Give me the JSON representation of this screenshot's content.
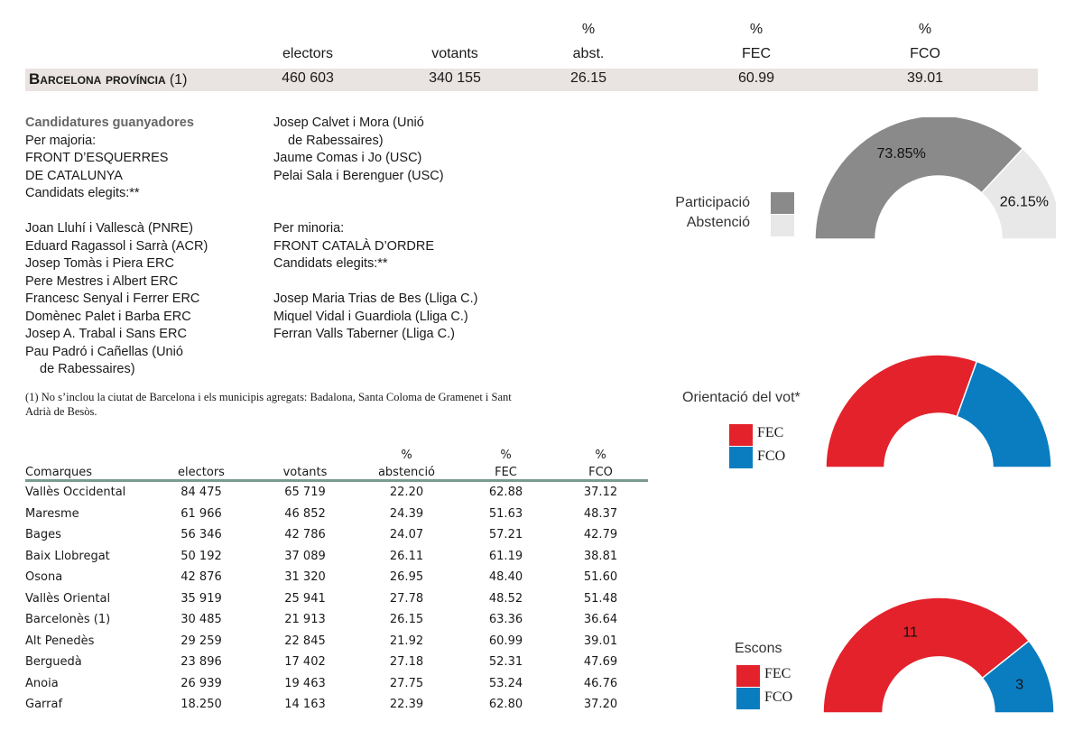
{
  "header": {
    "pct": "%",
    "electors": "electors",
    "votants": "votants",
    "abst": "abst.",
    "fec": "FEC",
    "fco": "FCO"
  },
  "summary": {
    "title": "Barcelona província",
    "ref": "(1)",
    "electors": "460 603",
    "votants": "340 155",
    "abst": "26.15",
    "fec": "60.99",
    "fco": "39.01"
  },
  "candidates": {
    "heading": "Candidatures guanyadores",
    "majority_label": "Per majoria:",
    "majority_party_1": "FRONT D’ESQUERRES",
    "majority_party_2": "DE CATALUNYA",
    "elected_label": "Candidats elegits:**",
    "majority_list": [
      "Joan Lluhí i Vallescà (PNRE)",
      "Eduard Ragassol i Sarrà (ACR)",
      "Josep Tomàs i Piera ERC",
      "Pere Mestres i Albert ERC",
      "Francesc Senyal i Ferrer ERC",
      "Domènec Palet i Barba ERC",
      "Josep A. Trabal i Sans ERC",
      "Pau Padró i Cañellas (Unió",
      "de Rabessaires)"
    ],
    "majority_list_cont": [
      "Josep Calvet i Mora (Unió",
      "de Rabessaires)",
      "Jaume Comas i Jo (USC)",
      "Pelai Sala i Berenguer (USC)"
    ],
    "minority_label": "Per minoria:",
    "minority_party": "FRONT CATALÀ D’ORDRE",
    "minority_elected_label": "Candidats elegits:**",
    "minority_list": [
      "Josep Maria Trias de Bes (Lliga C.)",
      "Miquel Vidal i Guardiola (Lliga C.)",
      "Ferran Valls Taberner (Lliga C.)"
    ]
  },
  "footnote": "(1) No s’inclou la ciutat de Barcelona i els municipis agregats: Badalona, Santa Coloma de Gramenet i Sant Adrià de Besòs.",
  "comarques_table": {
    "pct": "%",
    "columns": [
      "Comarques",
      "electors",
      "votants",
      "abstenció",
      "FEC",
      "FCO"
    ],
    "rows": [
      [
        "Vallès Occidental",
        "84 475",
        "65 719",
        "22.20",
        "62.88",
        "37.12"
      ],
      [
        "Maresme",
        "61 966",
        "46 852",
        "24.39",
        "51.63",
        "48.37"
      ],
      [
        "Bages",
        "56 346",
        "42 786",
        "24.07",
        "57.21",
        "42.79"
      ],
      [
        "Baix Llobregat",
        "50 192",
        "37 089",
        "26.11",
        "61.19",
        "38.81"
      ],
      [
        "Osona",
        "42 876",
        "31 320",
        "26.95",
        "48.40",
        "51.60"
      ],
      [
        "Vallès Oriental",
        "35 919",
        "25 941",
        "27.78",
        "48.52",
        "51.48"
      ],
      [
        "Barcelonès (1)",
        "30 485",
        "21 913",
        "26.15",
        "63.36",
        "36.64"
      ],
      [
        "Alt Penedès",
        "29 259",
        "22 845",
        "21.92",
        "60.99",
        "39.01"
      ],
      [
        "Berguedà",
        "23 896",
        "17 402",
        "27.18",
        "52.31",
        "47.69"
      ],
      [
        "Anoia",
        "26 939",
        "19 463",
        "27.75",
        "53.24",
        "46.76"
      ],
      [
        "Garraf",
        "18.250",
        "14 163",
        "22.39",
        "62.80",
        "37.20"
      ]
    ]
  },
  "colors": {
    "band": "#e9e3e1",
    "participacio": "#8a8a8a",
    "abstencio": "#e8e8e8",
    "fec": "#e3222b",
    "fco": "#0a7dc0",
    "rule": "#7a9a90"
  },
  "chart_data": [
    {
      "type": "pie",
      "shape": "half-donut",
      "title": "",
      "legend": [
        "Participació",
        "Abstenció"
      ],
      "legend_placement": "left",
      "slices": [
        {
          "name": "Participació",
          "value": 73.85,
          "label": "73.85%",
          "color": "#8a8a8a"
        },
        {
          "name": "Abstenció",
          "value": 26.15,
          "label": "26.15%",
          "color": "#e8e8e8"
        }
      ]
    },
    {
      "type": "pie",
      "shape": "half-donut",
      "title": "Orientació del vot*",
      "legend": [
        "FEC",
        "FCO"
      ],
      "legend_placement": "left",
      "slices": [
        {
          "name": "FEC",
          "value": 60.99,
          "label": "",
          "color": "#e3222b"
        },
        {
          "name": "FCO",
          "value": 39.01,
          "label": "",
          "color": "#0a7dc0"
        }
      ]
    },
    {
      "type": "pie",
      "shape": "half-donut",
      "title": "Escons",
      "legend": [
        "FEC",
        "FCO"
      ],
      "legend_placement": "left",
      "slices": [
        {
          "name": "FEC",
          "value": 11,
          "label": "11",
          "color": "#e3222b"
        },
        {
          "name": "FCO",
          "value": 3,
          "label": "3",
          "color": "#0a7dc0"
        }
      ]
    }
  ]
}
